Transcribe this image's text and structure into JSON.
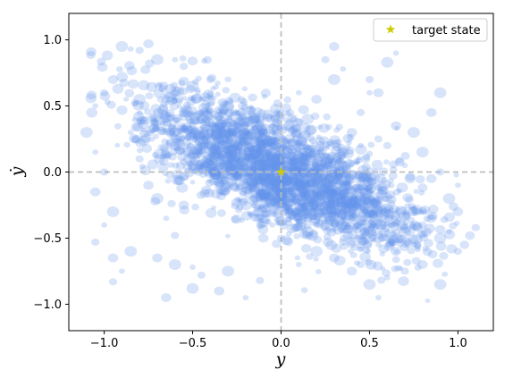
{
  "chart_data": {
    "type": "scatter",
    "xlabel": "y",
    "ylabel": "ẏ",
    "xlim": [
      -1.2,
      1.2
    ],
    "ylim": [
      -1.2,
      1.2
    ],
    "x_ticks": [
      -1.0,
      -0.5,
      0.0,
      0.5,
      1.0
    ],
    "x_tick_labels": [
      "−1.0",
      "−0.5",
      "0.0",
      "0.5",
      "1.0"
    ],
    "y_ticks": [
      1.0,
      0.5,
      0.0,
      -0.5,
      -1.0
    ],
    "y_tick_labels": [
      "1.0",
      "0.5",
      "0.0",
      "−0.5",
      "−1.0"
    ],
    "grid": false,
    "reference_lines": {
      "x": 0.0,
      "y": 0.0,
      "style": "dashed",
      "color": "#bfbfbf"
    },
    "series": [
      {
        "kind": "scatter-cloud",
        "color": "#6495ed",
        "alpha": 0.25,
        "points": [
          [
            -1.05,
            0.5
          ],
          [
            -1.0,
            0.6
          ],
          [
            -0.95,
            0.7
          ],
          [
            -0.9,
            0.95
          ],
          [
            -0.85,
            0.93
          ],
          [
            -0.8,
            0.92
          ],
          [
            -0.75,
            0.97
          ],
          [
            -0.7,
            0.85
          ],
          [
            -0.6,
            0.85
          ],
          [
            -0.55,
            0.8
          ],
          [
            -0.5,
            0.84
          ],
          [
            -1.1,
            0.3
          ],
          [
            -1.05,
            0.15
          ],
          [
            -1.0,
            0.0
          ],
          [
            -1.05,
            -0.15
          ],
          [
            -0.95,
            -0.3
          ],
          [
            -1.0,
            -0.4
          ],
          [
            -1.05,
            -0.53
          ],
          [
            -0.95,
            -0.65
          ],
          [
            -0.85,
            -0.6
          ],
          [
            -0.9,
            -0.75
          ],
          [
            -0.95,
            -0.83
          ],
          [
            -0.7,
            -0.65
          ],
          [
            -0.6,
            -0.7
          ],
          [
            -0.5,
            -0.72
          ],
          [
            -0.45,
            -0.78
          ],
          [
            -0.35,
            -0.9
          ],
          [
            -0.3,
            -0.75
          ],
          [
            -0.2,
            -0.95
          ],
          [
            -0.12,
            -0.82
          ],
          [
            -0.65,
            -0.95
          ],
          [
            -0.5,
            -0.88
          ],
          [
            -0.85,
            0.3
          ],
          [
            -0.8,
            0.1
          ],
          [
            -0.75,
            -0.1
          ],
          [
            -0.7,
            -0.2
          ],
          [
            -0.65,
            -0.35
          ],
          [
            -0.6,
            -0.48
          ],
          [
            -0.55,
            -0.25
          ],
          [
            -0.8,
            0.55
          ],
          [
            -0.7,
            0.4
          ],
          [
            -0.6,
            0.6
          ],
          [
            -0.55,
            0.45
          ],
          [
            -0.5,
            0.65
          ],
          [
            -0.45,
            0.55
          ],
          [
            -0.4,
            0.7
          ],
          [
            -0.35,
            0.35
          ],
          [
            -0.3,
            0.5
          ],
          [
            -0.25,
            0.45
          ],
          [
            -0.2,
            0.3
          ],
          [
            -0.15,
            0.4
          ],
          [
            -0.1,
            0.25
          ],
          [
            -0.05,
            0.35
          ],
          [
            0.0,
            0.1
          ],
          [
            0.05,
            -0.05
          ],
          [
            0.1,
            -0.1
          ],
          [
            0.15,
            -0.2
          ],
          [
            0.2,
            -0.15
          ],
          [
            0.25,
            -0.3
          ],
          [
            0.3,
            -0.25
          ],
          [
            0.35,
            -0.4
          ],
          [
            0.4,
            -0.35
          ],
          [
            0.45,
            -0.5
          ],
          [
            0.5,
            -0.45
          ],
          [
            0.55,
            -0.55
          ],
          [
            0.6,
            -0.5
          ],
          [
            0.65,
            -0.6
          ],
          [
            0.7,
            -0.45
          ],
          [
            0.75,
            -0.55
          ],
          [
            0.8,
            -0.4
          ],
          [
            0.85,
            -0.35
          ],
          [
            0.9,
            -0.5
          ],
          [
            0.95,
            -0.45
          ],
          [
            1.0,
            -0.6
          ],
          [
            1.0,
            -0.3
          ],
          [
            0.95,
            -0.2
          ],
          [
            1.0,
            -0.1
          ],
          [
            0.9,
            0.0
          ],
          [
            0.85,
            -0.05
          ],
          [
            0.8,
            0.15
          ],
          [
            0.7,
            0.05
          ],
          [
            0.6,
            0.2
          ],
          [
            0.65,
            0.35
          ],
          [
            0.75,
            0.3
          ],
          [
            0.5,
            0.6
          ],
          [
            0.45,
            0.45
          ],
          [
            0.4,
            0.3
          ],
          [
            0.35,
            0.15
          ],
          [
            0.45,
            0.2
          ],
          [
            0.55,
            0.25
          ],
          [
            0.2,
            0.55
          ],
          [
            0.3,
            0.7
          ],
          [
            0.35,
            0.78
          ],
          [
            0.25,
            0.85
          ],
          [
            0.3,
            0.95
          ],
          [
            0.15,
            0.4
          ],
          [
            0.1,
            0.6
          ],
          [
            0.05,
            0.45
          ],
          [
            0.4,
            -0.75
          ],
          [
            0.5,
            -0.85
          ],
          [
            0.6,
            -0.8
          ],
          [
            0.7,
            -0.75
          ],
          [
            0.8,
            -0.7
          ],
          [
            0.9,
            -0.85
          ],
          [
            0.55,
            -0.95
          ],
          [
            0.45,
            -0.7
          ],
          [
            0.3,
            -0.65
          ],
          [
            0.2,
            -0.6
          ],
          [
            0.1,
            -0.7
          ],
          [
            0.0,
            -0.5
          ],
          [
            -0.1,
            -0.5
          ],
          [
            0.15,
            -0.45
          ],
          [
            -0.05,
            -0.4
          ],
          [
            0.05,
            -0.3
          ],
          [
            0.55,
            0.6
          ],
          [
            0.6,
            0.83
          ],
          [
            0.65,
            0.9
          ],
          [
            0.5,
            0.7
          ],
          [
            0.85,
            0.45
          ],
          [
            0.9,
            0.6
          ]
        ]
      }
    ],
    "target": {
      "x": 0.0,
      "y": 0.0,
      "marker": "star",
      "color": "#cccc00",
      "label": "target state"
    },
    "legend": {
      "position": "top-right",
      "entries": [
        "target state"
      ]
    }
  }
}
